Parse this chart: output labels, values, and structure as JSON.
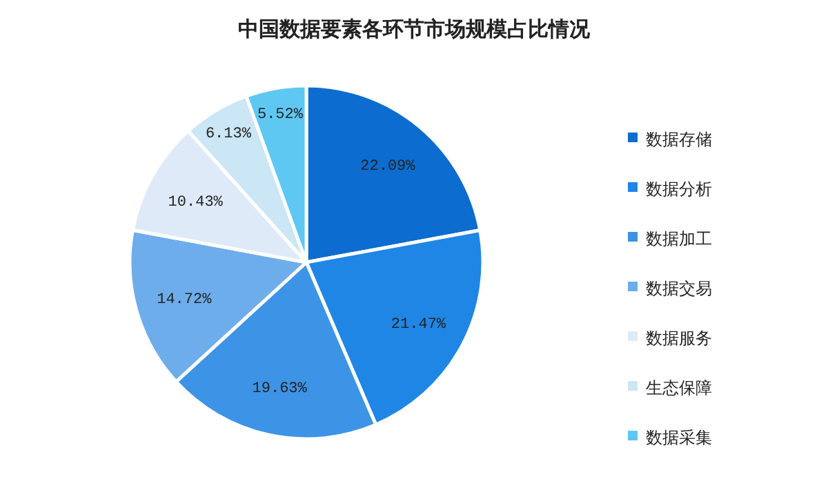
{
  "chart_data": {
    "type": "pie",
    "title": "中国数据要素各环节市场规模占比情况",
    "categories": [
      "数据存储",
      "数据分析",
      "数据加工",
      "数据交易",
      "数据服务",
      "生态保障",
      "数据采集"
    ],
    "values": [
      22.09,
      21.47,
      19.63,
      14.72,
      10.43,
      6.13,
      5.52
    ],
    "value_labels": [
      "22.09%",
      "21.47%",
      "19.63%",
      "14.72%",
      "10.43%",
      "6.13%",
      "5.52%"
    ],
    "colors": [
      "#0c6ccf",
      "#1f86e6",
      "#3d93e6",
      "#6eadeb",
      "#deeaf7",
      "#cbe6f5",
      "#5ec8f3"
    ],
    "legend": "right"
  }
}
